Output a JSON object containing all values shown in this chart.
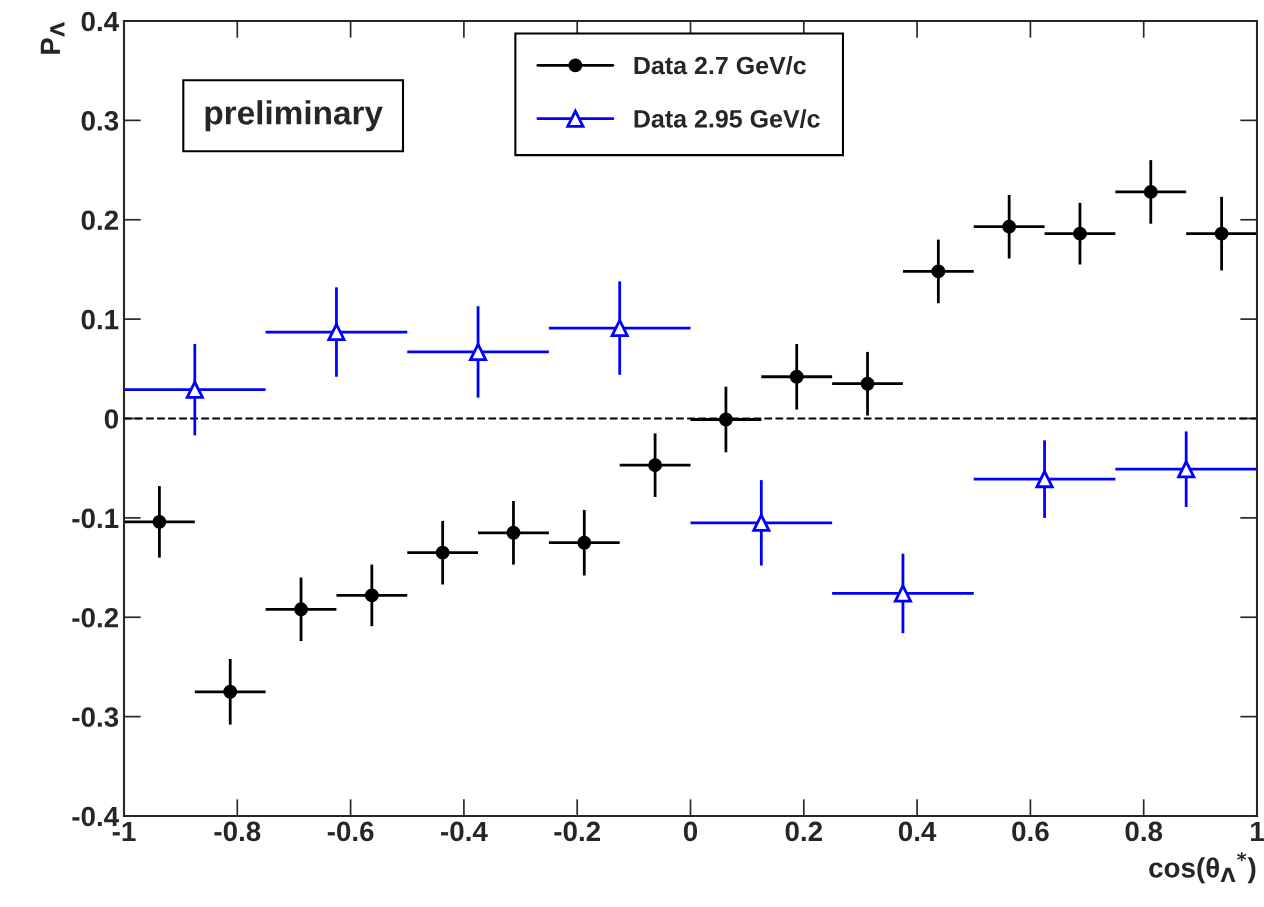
{
  "chart_data": {
    "type": "scatter",
    "xlabel": "cos(θ$_{Λ}$$^{*}$)",
    "ylabel": "P$_{Λ}$",
    "xlim": [
      -1,
      1
    ],
    "ylim": [
      -0.4,
      0.4
    ],
    "xticks": [
      -1,
      -0.8,
      -0.6,
      -0.4,
      -0.2,
      0,
      0.2,
      0.4,
      0.6,
      0.8,
      1
    ],
    "yticks": [
      -0.4,
      -0.3,
      -0.2,
      -0.1,
      0,
      0.1,
      0.2,
      0.3,
      0.4
    ],
    "grid": false,
    "legend": "top",
    "annotations": [
      "preliminary"
    ],
    "ref_lines": [
      {
        "axis": "y",
        "value": 0,
        "color": "#000000",
        "line_style": "dashed"
      }
    ],
    "series": [
      {
        "name": "Data 2.7 GeV/c",
        "color": "#000000",
        "marker": "circle",
        "x": [
          -0.9375,
          -0.8125,
          -0.6875,
          -0.5625,
          -0.4375,
          -0.3125,
          -0.1875,
          -0.0625,
          0.0625,
          0.1875,
          0.3125,
          0.4375,
          0.5625,
          0.6875,
          0.8125,
          0.9375
        ],
        "values": [
          -0.104,
          -0.275,
          -0.192,
          -0.178,
          -0.135,
          -0.115,
          -0.125,
          -0.047,
          -0.001,
          0.042,
          0.035,
          0.148,
          0.193,
          0.186,
          0.228,
          0.186
        ],
        "errors": [
          0.036,
          0.033,
          0.032,
          0.031,
          0.032,
          0.032,
          0.033,
          0.032,
          0.033,
          0.033,
          0.032,
          0.032,
          0.032,
          0.031,
          0.032,
          0.037
        ],
        "xerrors": [
          0.0625,
          0.0625,
          0.0625,
          0.0625,
          0.0625,
          0.0625,
          0.0625,
          0.0625,
          0.0625,
          0.0625,
          0.0625,
          0.0625,
          0.0625,
          0.0625,
          0.0625,
          0.0625
        ]
      },
      {
        "name": "Data 2.95 GeV/c",
        "color": "#0000ff",
        "marker": "triangle",
        "x": [
          -0.875,
          -0.625,
          -0.375,
          -0.125,
          0.125,
          0.375,
          0.625,
          0.875
        ],
        "values": [
          0.029,
          0.087,
          0.067,
          0.091,
          -0.105,
          -0.176,
          -0.061,
          -0.051
        ],
        "errors": [
          0.046,
          0.045,
          0.046,
          0.047,
          0.043,
          0.04,
          0.039,
          0.038
        ],
        "xerrors": [
          0.125,
          0.125,
          0.125,
          0.125,
          0.125,
          0.125,
          0.125,
          0.125
        ]
      }
    ]
  }
}
